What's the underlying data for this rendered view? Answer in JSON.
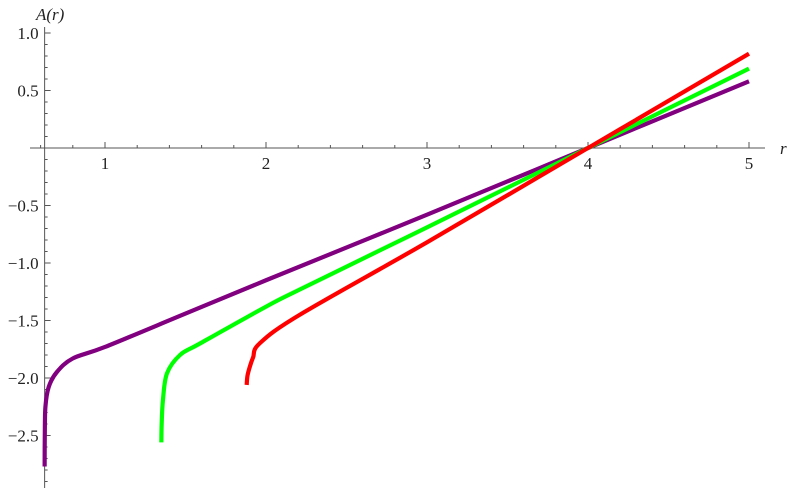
{
  "chart_data": {
    "type": "line",
    "xlabel": "r",
    "ylabel": "A(r)",
    "xlim": [
      0.625,
      5.1
    ],
    "ylim": [
      -2.85,
      1.05
    ],
    "x_ticks": [
      1,
      2,
      3,
      4,
      5
    ],
    "x_tick_labels": [
      "1",
      "2",
      "3",
      "4",
      "5"
    ],
    "y_ticks": [
      1.0,
      0.5,
      -0.5,
      -1.0,
      -1.5,
      -2.0,
      -2.5
    ],
    "y_tick_labels": [
      "1.0",
      "0.5",
      "−0.5",
      "−1.0",
      "−1.5",
      "−2.0",
      "−2.5"
    ],
    "grid": false,
    "series": [
      {
        "color": "#800080",
        "points": [
          [
            0.625,
            -2.77
          ],
          [
            0.626,
            -2.5
          ],
          [
            0.63,
            -2.25
          ],
          [
            0.65,
            -2.08
          ],
          [
            0.7,
            -1.95
          ],
          [
            0.8,
            -1.83
          ],
          [
            1.0,
            -1.73
          ],
          [
            1.5,
            -1.44
          ],
          [
            2.0,
            -1.15
          ],
          [
            3.0,
            -0.58
          ],
          [
            4.0,
            0
          ],
          [
            5.0,
            0.58
          ]
        ]
      },
      {
        "color": "#00ff00",
        "points": [
          [
            1.35,
            -2.56
          ],
          [
            1.352,
            -2.4
          ],
          [
            1.36,
            -2.19
          ],
          [
            1.385,
            -1.96
          ],
          [
            1.466,
            -1.8
          ],
          [
            1.59,
            -1.7
          ],
          [
            2.0,
            -1.38
          ],
          [
            2.21,
            -1.23
          ],
          [
            3.0,
            -0.69
          ],
          [
            4.0,
            0
          ],
          [
            5.0,
            0.69
          ]
        ]
      },
      {
        "color": "#ff0000",
        "points": [
          [
            1.88,
            -2.06
          ],
          [
            1.885,
            -1.98
          ],
          [
            1.9,
            -1.9
          ],
          [
            1.92,
            -1.82
          ],
          [
            1.96,
            -1.7
          ],
          [
            2.21,
            -1.45
          ],
          [
            3.0,
            -0.82
          ],
          [
            4.0,
            0
          ],
          [
            5.0,
            0.82
          ]
        ]
      }
    ]
  }
}
